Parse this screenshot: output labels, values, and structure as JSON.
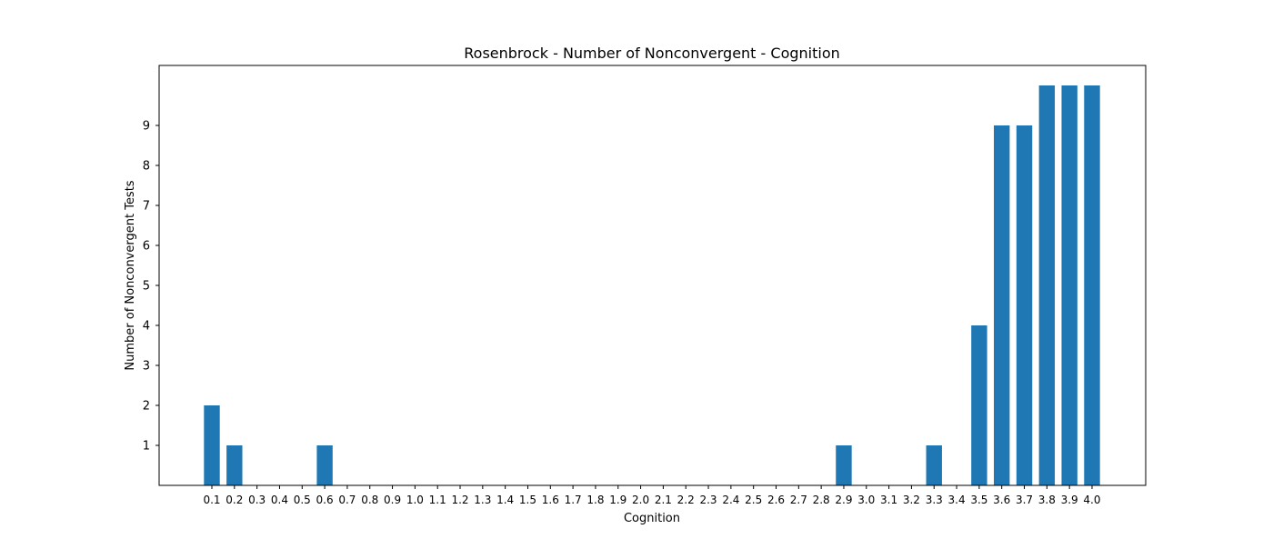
{
  "chart_data": {
    "type": "bar",
    "title": "Rosenbrock - Number of Nonconvergent - Cognition",
    "xlabel": "Cognition",
    "ylabel": "Number of Nonconvergent Tests",
    "categories": [
      "0.1",
      "0.2",
      "0.3",
      "0.4",
      "0.5",
      "0.6",
      "0.7",
      "0.8",
      "0.9",
      "1.0",
      "1.1",
      "1.2",
      "1.3",
      "1.4",
      "1.5",
      "1.6",
      "1.7",
      "1.8",
      "1.9",
      "2.0",
      "2.1",
      "2.2",
      "2.3",
      "2.4",
      "2.5",
      "2.6",
      "2.7",
      "2.8",
      "2.9",
      "3.0",
      "3.1",
      "3.2",
      "3.3",
      "3.4",
      "3.5",
      "3.6",
      "3.7",
      "3.8",
      "3.9",
      "4.0"
    ],
    "values": [
      2,
      1,
      0,
      0,
      0,
      1,
      0,
      0,
      0,
      0,
      0,
      0,
      0,
      0,
      0,
      0,
      0,
      0,
      0,
      0,
      0,
      0,
      0,
      0,
      0,
      0,
      0,
      0,
      1,
      0,
      0,
      0,
      1,
      0,
      4,
      9,
      9,
      10,
      10,
      10
    ],
    "yticks": [
      "1",
      "2",
      "3",
      "4",
      "5",
      "6",
      "7",
      "8",
      "9"
    ],
    "ylim": [
      0,
      10.5
    ],
    "grid": false,
    "bar_color": "#1f77b4"
  }
}
